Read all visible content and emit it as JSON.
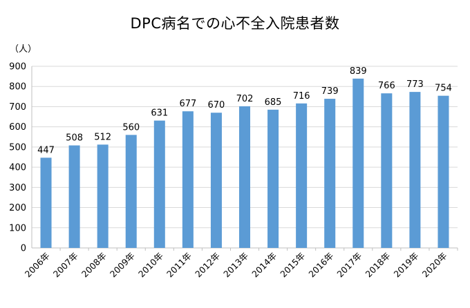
{
  "chart_data": {
    "type": "bar",
    "title": "DPC病名での心不全入院患者数",
    "ylabel": "（人）",
    "xlabel": "",
    "ylim": [
      0,
      900
    ],
    "yticks": [
      0,
      100,
      200,
      300,
      400,
      500,
      600,
      700,
      800,
      900
    ],
    "grid": true,
    "legend": "none",
    "categories": [
      "2006年",
      "2007年",
      "2008年",
      "2009年",
      "2010年",
      "2011年",
      "2012年",
      "2013年",
      "2014年",
      "2015年",
      "2016年",
      "2017年",
      "2018年",
      "2019年",
      "2020年"
    ],
    "values": [
      447,
      508,
      512,
      560,
      631,
      677,
      670,
      702,
      685,
      716,
      739,
      839,
      766,
      773,
      754
    ],
    "bar_color": "#5B9BD5",
    "grid_color": "#D9D9D9",
    "axis_color": "#BFBFBF"
  }
}
